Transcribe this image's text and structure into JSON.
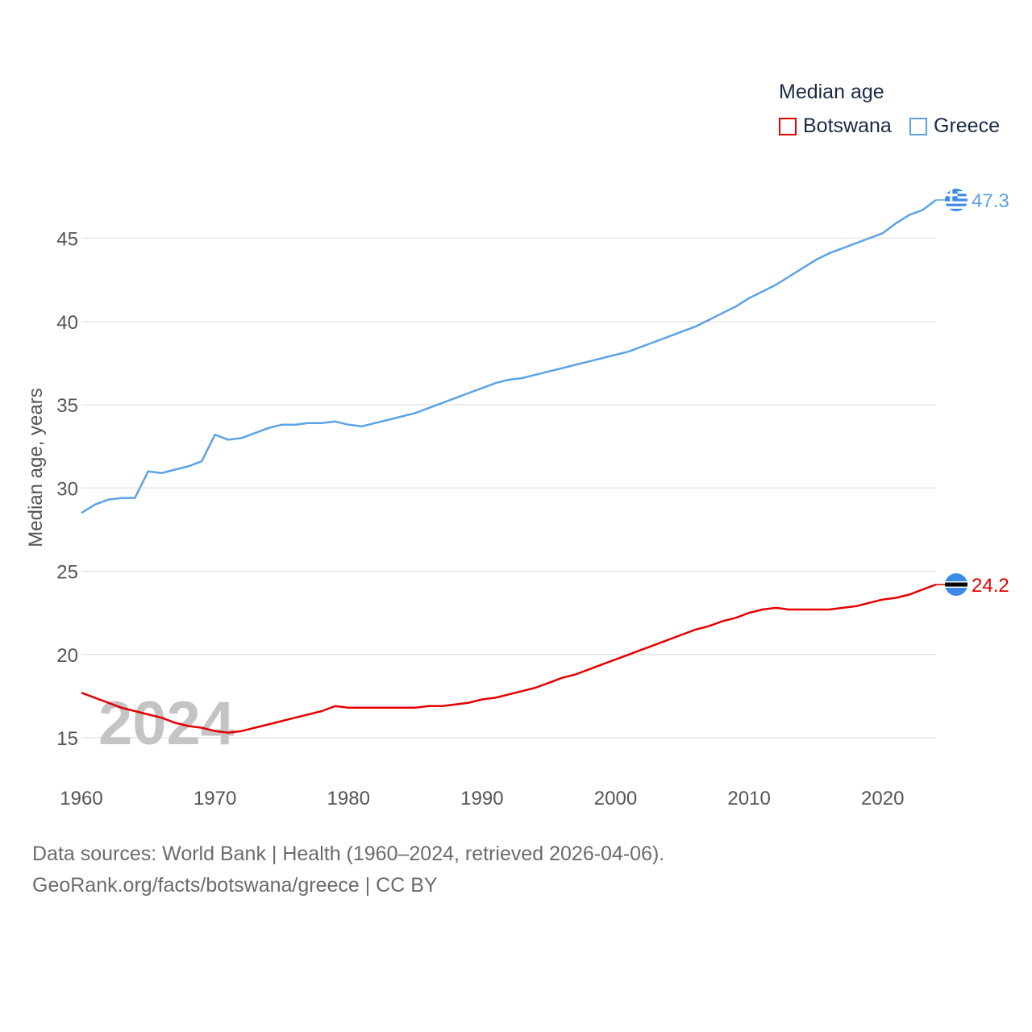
{
  "legend": {
    "title": "Median age",
    "items": [
      {
        "label": "Botswana",
        "color": "#e60000"
      },
      {
        "label": "Greece",
        "color": "#5ba3e6"
      }
    ]
  },
  "footer": {
    "line1": "Data sources: World Bank | Health (1960–2024, retrieved 2026-04-06).",
    "line2": "GeoRank.org/facts/botswana/greece | CC BY"
  },
  "chart_data": {
    "type": "line",
    "title": "Median age",
    "xlabel": "",
    "ylabel": "Median age, years",
    "year_watermark": "2024",
    "xlim": [
      1960,
      2024
    ],
    "ylim": [
      13,
      48
    ],
    "x_ticks": [
      "1960",
      "1970",
      "1980",
      "1990",
      "2000",
      "2010",
      "2020"
    ],
    "y_ticks": [
      "15",
      "20",
      "25",
      "30",
      "35",
      "40",
      "45"
    ],
    "grid": true,
    "legend_position": "top-right",
    "x": [
      1960,
      1961,
      1962,
      1963,
      1964,
      1965,
      1966,
      1967,
      1968,
      1969,
      1970,
      1971,
      1972,
      1973,
      1974,
      1975,
      1976,
      1977,
      1978,
      1979,
      1980,
      1981,
      1982,
      1983,
      1984,
      1985,
      1986,
      1987,
      1988,
      1989,
      1990,
      1991,
      1992,
      1993,
      1994,
      1995,
      1996,
      1997,
      1998,
      1999,
      2000,
      2001,
      2002,
      2003,
      2004,
      2005,
      2006,
      2007,
      2008,
      2009,
      2010,
      2011,
      2012,
      2013,
      2014,
      2015,
      2016,
      2017,
      2018,
      2019,
      2020,
      2021,
      2022,
      2023,
      2024
    ],
    "series": [
      {
        "name": "Botswana",
        "color": "#e60000",
        "end_label": "24.2",
        "values": [
          17.7,
          17.4,
          17.1,
          16.8,
          16.6,
          16.4,
          16.2,
          15.9,
          15.7,
          15.6,
          15.4,
          15.3,
          15.4,
          15.6,
          15.8,
          16.0,
          16.2,
          16.4,
          16.6,
          16.9,
          16.8,
          16.8,
          16.8,
          16.8,
          16.8,
          16.8,
          16.9,
          16.9,
          17.0,
          17.1,
          17.3,
          17.4,
          17.6,
          17.8,
          18.0,
          18.3,
          18.6,
          18.8,
          19.1,
          19.4,
          19.7,
          20.0,
          20.3,
          20.6,
          20.9,
          21.2,
          21.5,
          21.7,
          22.0,
          22.2,
          22.5,
          22.7,
          22.8,
          22.7,
          22.7,
          22.7,
          22.7,
          22.8,
          22.9,
          23.1,
          23.3,
          23.4,
          23.6,
          23.9,
          24.2
        ]
      },
      {
        "name": "Greece",
        "color": "#5ba3e6",
        "end_label": "47.3",
        "values": [
          28.5,
          29.0,
          29.3,
          29.4,
          29.4,
          31.0,
          30.9,
          31.1,
          31.3,
          31.6,
          33.2,
          32.9,
          33.0,
          33.3,
          33.6,
          33.8,
          33.8,
          33.9,
          33.9,
          34.0,
          33.8,
          33.7,
          33.9,
          34.1,
          34.3,
          34.5,
          34.8,
          35.1,
          35.4,
          35.7,
          36.0,
          36.3,
          36.5,
          36.6,
          36.8,
          37.0,
          37.2,
          37.4,
          37.6,
          37.8,
          38.0,
          38.2,
          38.5,
          38.8,
          39.1,
          39.4,
          39.7,
          40.1,
          40.5,
          40.9,
          41.4,
          41.8,
          42.2,
          42.7,
          43.2,
          43.7,
          44.1,
          44.4,
          44.7,
          45.0,
          45.3,
          45.9,
          46.4,
          46.7,
          47.3
        ]
      }
    ]
  }
}
